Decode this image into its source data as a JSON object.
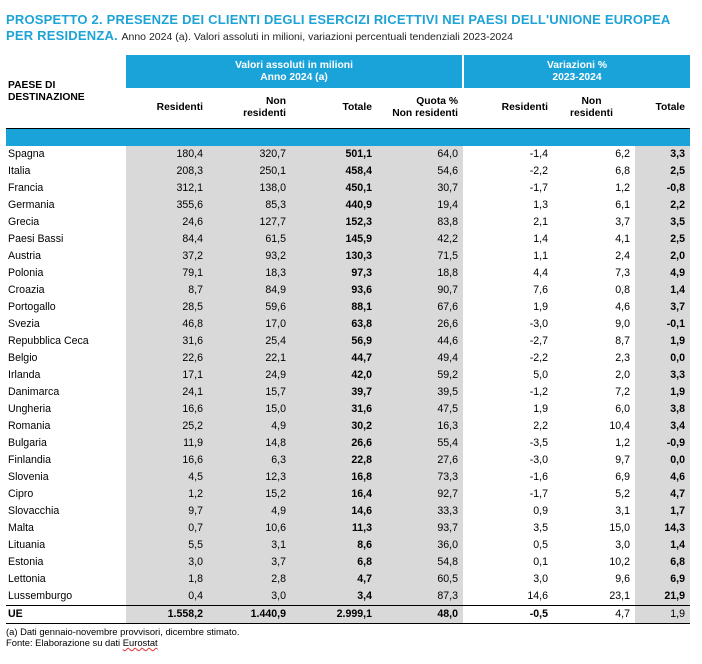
{
  "title": {
    "main": "PROSPETTO 2. PRESENZE DEI CLIENTI DEGLI ESERCIZI RICETTIVI NEI PAESI DELL'UNIONE EUROPEA PER RESIDENZA.",
    "sub": "Anno 2024 (a). Valori assoluti in milioni, variazioni percentuali tendenziali 2023-2024"
  },
  "header": {
    "paese_line1": "PAESE DI",
    "paese_line2": "DESTINAZIONE",
    "group1_line1": "Valori assoluti in milioni",
    "group1_line2": "Anno 2024 (a)",
    "group2_line1": "Variazioni %",
    "group2_line2": "2023-2024",
    "col_residenti": "Residenti",
    "col_non_line1": "Non",
    "col_non_line2": "residenti",
    "col_totale": "Totale",
    "col_quota_line1": "Quota %",
    "col_quota_line2": "Non residenti",
    "col_var_residenti": "Residenti",
    "col_var_non_line1": "Non",
    "col_var_non_line2": "residenti",
    "col_var_totale": "Totale"
  },
  "rows": [
    {
      "paese": "Spagna",
      "residenti": "180,4",
      "non_residenti": "320,7",
      "totale": "501,1",
      "quota": "64,0",
      "var_res": "-1,4",
      "var_non": "6,2",
      "var_tot": "3,3"
    },
    {
      "paese": "Italia",
      "residenti": "208,3",
      "non_residenti": "250,1",
      "totale": "458,4",
      "quota": "54,6",
      "var_res": "-2,2",
      "var_non": "6,8",
      "var_tot": "2,5"
    },
    {
      "paese": "Francia",
      "residenti": "312,1",
      "non_residenti": "138,0",
      "totale": "450,1",
      "quota": "30,7",
      "var_res": "-1,7",
      "var_non": "1,2",
      "var_tot": "-0,8"
    },
    {
      "paese": "Germania",
      "residenti": "355,6",
      "non_residenti": "85,3",
      "totale": "440,9",
      "quota": "19,4",
      "var_res": "1,3",
      "var_non": "6,1",
      "var_tot": "2,2"
    },
    {
      "paese": "Grecia",
      "residenti": "24,6",
      "non_residenti": "127,7",
      "totale": "152,3",
      "quota": "83,8",
      "var_res": "2,1",
      "var_non": "3,7",
      "var_tot": "3,5"
    },
    {
      "paese": "Paesi Bassi",
      "residenti": "84,4",
      "non_residenti": "61,5",
      "totale": "145,9",
      "quota": "42,2",
      "var_res": "1,4",
      "var_non": "4,1",
      "var_tot": "2,5"
    },
    {
      "paese": "Austria",
      "residenti": "37,2",
      "non_residenti": "93,2",
      "totale": "130,3",
      "quota": "71,5",
      "var_res": "1,1",
      "var_non": "2,4",
      "var_tot": "2,0"
    },
    {
      "paese": "Polonia",
      "residenti": "79,1",
      "non_residenti": "18,3",
      "totale": "97,3",
      "quota": "18,8",
      "var_res": "4,4",
      "var_non": "7,3",
      "var_tot": "4,9"
    },
    {
      "paese": "Croazia",
      "residenti": "8,7",
      "non_residenti": "84,9",
      "totale": "93,6",
      "quota": "90,7",
      "var_res": "7,6",
      "var_non": "0,8",
      "var_tot": "1,4"
    },
    {
      "paese": "Portogallo",
      "residenti": "28,5",
      "non_residenti": "59,6",
      "totale": "88,1",
      "quota": "67,6",
      "var_res": "1,9",
      "var_non": "4,6",
      "var_tot": "3,7"
    },
    {
      "paese": "Svezia",
      "residenti": "46,8",
      "non_residenti": "17,0",
      "totale": "63,8",
      "quota": "26,6",
      "var_res": "-3,0",
      "var_non": "9,0",
      "var_tot": "-0,1"
    },
    {
      "paese": "Repubblica Ceca",
      "residenti": "31,6",
      "non_residenti": "25,4",
      "totale": "56,9",
      "quota": "44,6",
      "var_res": "-2,7",
      "var_non": "8,7",
      "var_tot": "1,9"
    },
    {
      "paese": "Belgio",
      "residenti": "22,6",
      "non_residenti": "22,1",
      "totale": "44,7",
      "quota": "49,4",
      "var_res": "-2,2",
      "var_non": "2,3",
      "var_tot": "0,0"
    },
    {
      "paese": "Irlanda",
      "residenti": "17,1",
      "non_residenti": "24,9",
      "totale": "42,0",
      "quota": "59,2",
      "var_res": "5,0",
      "var_non": "2,0",
      "var_tot": "3,3"
    },
    {
      "paese": "Danimarca",
      "residenti": "24,1",
      "non_residenti": "15,7",
      "totale": "39,7",
      "quota": "39,5",
      "var_res": "-1,2",
      "var_non": "7,2",
      "var_tot": "1,9"
    },
    {
      "paese": "Ungheria",
      "residenti": "16,6",
      "non_residenti": "15,0",
      "totale": "31,6",
      "quota": "47,5",
      "var_res": "1,9",
      "var_non": "6,0",
      "var_tot": "3,8"
    },
    {
      "paese": "Romania",
      "residenti": "25,2",
      "non_residenti": "4,9",
      "totale": "30,2",
      "quota": "16,3",
      "var_res": "2,2",
      "var_non": "10,4",
      "var_tot": "3,4"
    },
    {
      "paese": "Bulgaria",
      "residenti": "11,9",
      "non_residenti": "14,8",
      "totale": "26,6",
      "quota": "55,4",
      "var_res": "-3,5",
      "var_non": "1,2",
      "var_tot": "-0,9"
    },
    {
      "paese": "Finlandia",
      "residenti": "16,6",
      "non_residenti": "6,3",
      "totale": "22,8",
      "quota": "27,6",
      "var_res": "-3,0",
      "var_non": "9,7",
      "var_tot": "0,0"
    },
    {
      "paese": "Slovenia",
      "residenti": "4,5",
      "non_residenti": "12,3",
      "totale": "16,8",
      "quota": "73,3",
      "var_res": "-1,6",
      "var_non": "6,9",
      "var_tot": "4,6"
    },
    {
      "paese": "Cipro",
      "residenti": "1,2",
      "non_residenti": "15,2",
      "totale": "16,4",
      "quota": "92,7",
      "var_res": "-1,7",
      "var_non": "5,2",
      "var_tot": "4,7"
    },
    {
      "paese": "Slovacchia",
      "residenti": "9,7",
      "non_residenti": "4,9",
      "totale": "14,6",
      "quota": "33,3",
      "var_res": "0,9",
      "var_non": "3,1",
      "var_tot": "1,7"
    },
    {
      "paese": "Malta",
      "residenti": "0,7",
      "non_residenti": "10,6",
      "totale": "11,3",
      "quota": "93,7",
      "var_res": "3,5",
      "var_non": "15,0",
      "var_tot": "14,3"
    },
    {
      "paese": "Lituania",
      "residenti": "5,5",
      "non_residenti": "3,1",
      "totale": "8,6",
      "quota": "36,0",
      "var_res": "0,5",
      "var_non": "3,0",
      "var_tot": "1,4"
    },
    {
      "paese": "Estonia",
      "residenti": "3,0",
      "non_residenti": "3,7",
      "totale": "6,8",
      "quota": "54,8",
      "var_res": "0,1",
      "var_non": "10,2",
      "var_tot": "6,8"
    },
    {
      "paese": "Lettonia",
      "residenti": "1,8",
      "non_residenti": "2,8",
      "totale": "4,7",
      "quota": "60,5",
      "var_res": "3,0",
      "var_non": "9,6",
      "var_tot": "6,9"
    },
    {
      "paese": "Lussemburgo",
      "residenti": "0,4",
      "non_residenti": "3,0",
      "totale": "3,4",
      "quota": "87,3",
      "var_res": "14,6",
      "var_non": "23,1",
      "var_tot": "21,9"
    }
  ],
  "total": {
    "paese": "UE",
    "residenti": "1.558,2",
    "non_residenti": "1.440,9",
    "totale": "2.999,1",
    "quota": "48,0",
    "var_res": "-0,5",
    "var_non": "4,7",
    "var_tot": "1,9"
  },
  "notes": {
    "note_a": "(a) Dati gennaio-novembre provvisori, dicembre stimato.",
    "fonte_prefix": "Fonte: Elaborazione su dati",
    "fonte_source": "Eurostat"
  },
  "colors": {
    "accent": "#1aa3d9",
    "title": "#1ea3d7",
    "shade": "#d9d9d9"
  }
}
